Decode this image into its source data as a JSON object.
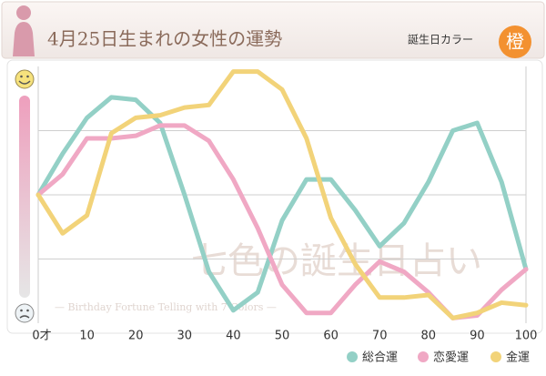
{
  "header": {
    "title": "4月25日生まれの女性の運勢",
    "color_label": "誕生日カラー",
    "color_name": "橙"
  },
  "watermark": {
    "title": "七色の誕生日占い",
    "subtitle": "— Birthday Fortune Telling with 7 Colors —"
  },
  "chart_data": {
    "type": "line",
    "x": [
      0,
      5,
      10,
      15,
      20,
      25,
      30,
      35,
      40,
      45,
      50,
      55,
      60,
      65,
      70,
      75,
      80,
      85,
      90,
      95,
      100
    ],
    "xlim": [
      0,
      100
    ],
    "xticks": [
      {
        "value": 0,
        "label": "0才"
      },
      10,
      20,
      30,
      40,
      50,
      60,
      70,
      80,
      90,
      100
    ],
    "ylim": [
      0,
      100
    ],
    "yticks": [
      25,
      50,
      75
    ],
    "grid": true,
    "series": [
      {
        "name": "総合運",
        "color": "#93d0c6",
        "values": [
          50,
          66,
          80,
          88,
          87,
          78,
          50,
          20,
          5,
          12,
          40,
          56,
          56,
          44,
          30,
          39,
          55,
          75,
          78,
          55,
          21
        ]
      },
      {
        "name": "恋愛運",
        "color": "#f0a8c4",
        "values": [
          50,
          58,
          72,
          72,
          73,
          77,
          77,
          71,
          56,
          37,
          15,
          4,
          4,
          15,
          24,
          20,
          12,
          2,
          3,
          13,
          21
        ]
      },
      {
        "name": "金運",
        "color": "#f2d379",
        "values": [
          50,
          35,
          42,
          74,
          80,
          81,
          84,
          85,
          98,
          98,
          91,
          72,
          41,
          23,
          10,
          10,
          11,
          2,
          4,
          8,
          7
        ]
      }
    ]
  }
}
